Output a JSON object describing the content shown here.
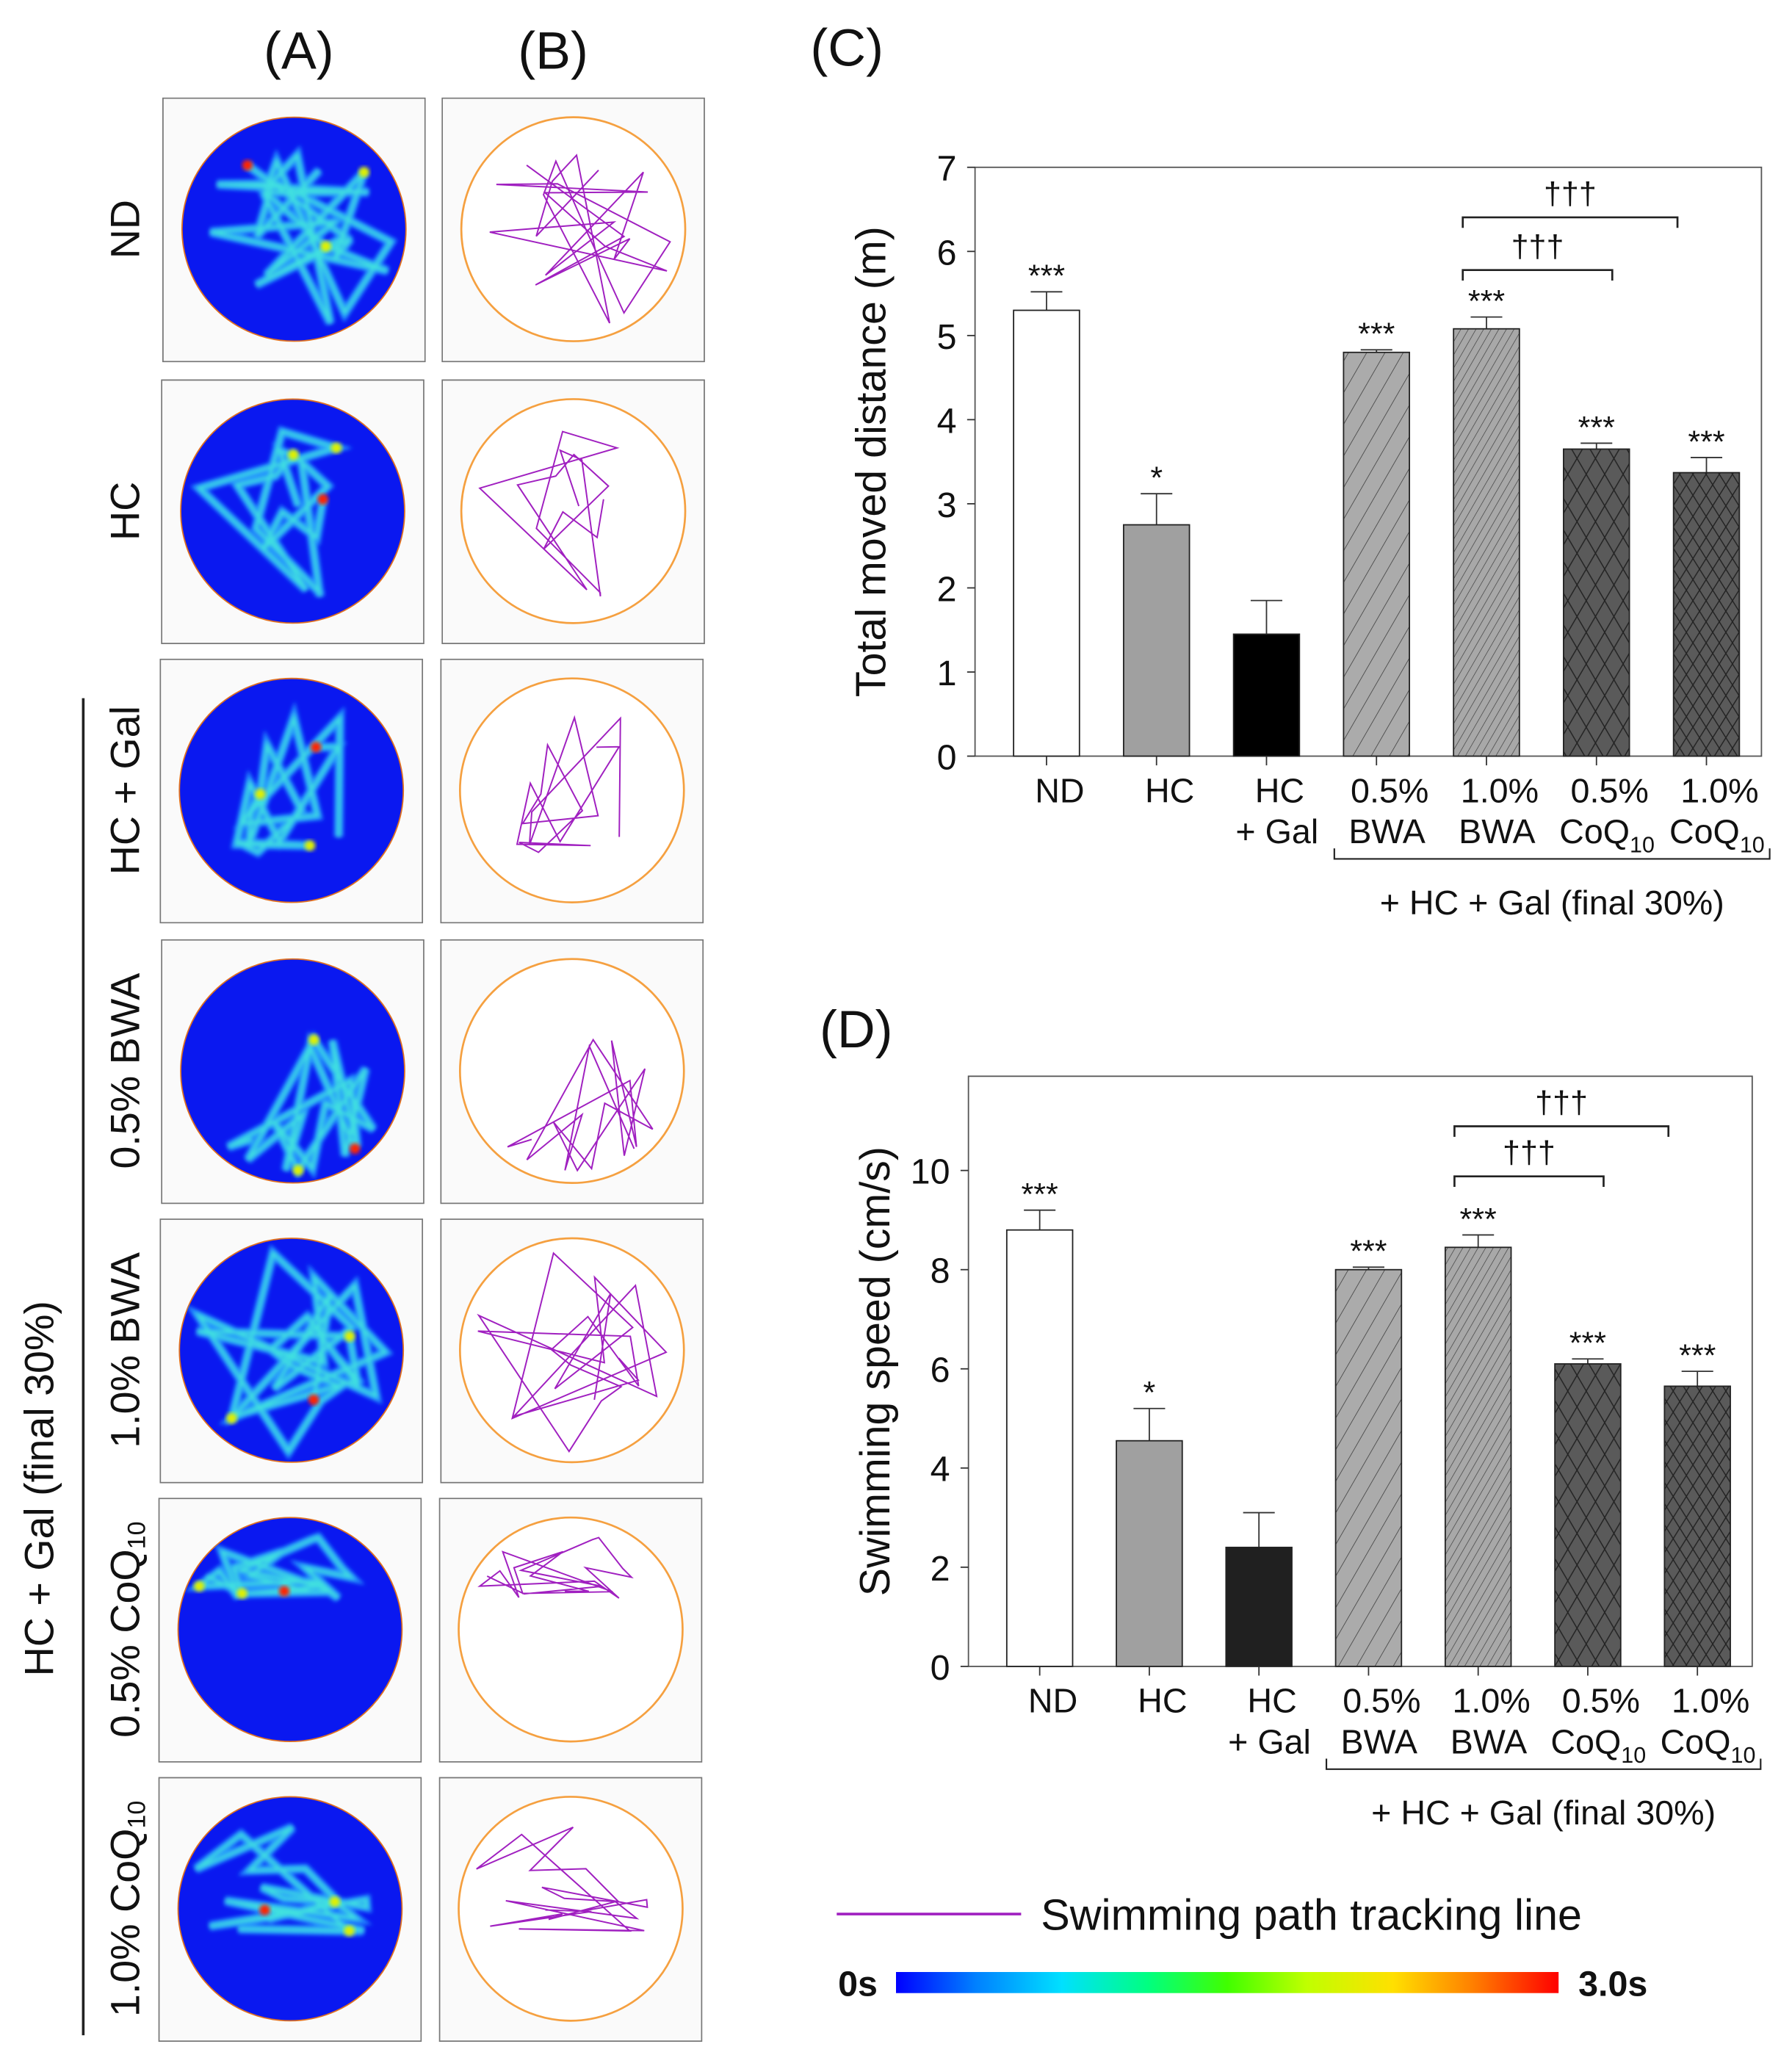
{
  "panel_labels": {
    "A": "(A)",
    "B": "(B)",
    "C": "(C)",
    "D": "(D)"
  },
  "rows": [
    {
      "label": "ND",
      "sub": ""
    },
    {
      "label": "HC",
      "sub": ""
    },
    {
      "label": "HC + Gal",
      "sub": ""
    },
    {
      "label": "0.5% BWA",
      "sub": ""
    },
    {
      "label": "1.0% BWA",
      "sub": ""
    },
    {
      "label": "0.5% CoQ",
      "sub": "10"
    },
    {
      "label": "1.0% CoQ",
      "sub": "10"
    }
  ],
  "group_label": "HC + Gal (final 30%)",
  "legend": {
    "line_label": "Swimming path tracking line",
    "colorbar_min": "0s",
    "colorbar_max": "3.0s",
    "path_color": "#a020c0"
  },
  "chart_data": [
    {
      "type": "bar",
      "title": "(C)",
      "ylabel": "Total moved distance (m)",
      "ylim": [
        0,
        7
      ],
      "yticks": [
        "0",
        "1",
        "2",
        "3",
        "4",
        "5",
        "6",
        "7"
      ],
      "categories": [
        {
          "line1": "ND",
          "line2": "",
          "sub": ""
        },
        {
          "line1": "HC",
          "line2": "",
          "sub": ""
        },
        {
          "line1": "HC",
          "line2": "+ Gal",
          "sub": ""
        },
        {
          "line1": "0.5%",
          "line2": "BWA",
          "sub": ""
        },
        {
          "line1": "1.0%",
          "line2": "BWA",
          "sub": ""
        },
        {
          "line1": "0.5%",
          "line2": "CoQ",
          "sub": "10"
        },
        {
          "line1": "1.0%",
          "line2": "CoQ",
          "sub": "10"
        }
      ],
      "values": [
        5.3,
        2.75,
        1.45,
        4.8,
        5.08,
        3.65,
        3.37
      ],
      "errors": [
        0.22,
        0.37,
        0.4,
        0.03,
        0.14,
        0.07,
        0.18
      ],
      "significance": [
        "***",
        "*",
        "",
        "***",
        "***",
        "***",
        "***"
      ],
      "comparisons": [
        {
          "from": 4,
          "to": 5,
          "label": "†††"
        },
        {
          "from": 4,
          "to": 6,
          "label": "†††"
        }
      ],
      "group_bracket": {
        "from": 3,
        "to": 6,
        "label": "+ HC + Gal (final 30%)"
      }
    },
    {
      "type": "bar",
      "title": "(D)",
      "ylabel": "Swimming speed (cm/s)",
      "ylim": [
        0,
        11.9
      ],
      "yticks": [
        "0",
        "2",
        "4",
        "6",
        "8",
        "10"
      ],
      "categories": [
        {
          "line1": "ND",
          "line2": "",
          "sub": ""
        },
        {
          "line1": "HC",
          "line2": "",
          "sub": ""
        },
        {
          "line1": "HC",
          "line2": "+ Gal",
          "sub": ""
        },
        {
          "line1": "0.5%",
          "line2": "BWA",
          "sub": ""
        },
        {
          "line1": "1.0%",
          "line2": "BWA",
          "sub": ""
        },
        {
          "line1": "0.5%",
          "line2": "CoQ",
          "sub": "10"
        },
        {
          "line1": "1.0%",
          "line2": "CoQ",
          "sub": "10"
        }
      ],
      "values": [
        8.8,
        4.55,
        2.4,
        8.0,
        8.45,
        6.1,
        5.65
      ],
      "errors": [
        0.4,
        0.65,
        0.7,
        0.05,
        0.25,
        0.1,
        0.3
      ],
      "significance": [
        "***",
        "*",
        "",
        "***",
        "***",
        "***",
        "***"
      ],
      "comparisons": [
        {
          "from": 4,
          "to": 5,
          "label": "†††"
        },
        {
          "from": 4,
          "to": 6,
          "label": "†††"
        }
      ],
      "group_bracket": {
        "from": 3,
        "to": 6,
        "label": "+ HC + Gal (final 30%)"
      }
    }
  ]
}
